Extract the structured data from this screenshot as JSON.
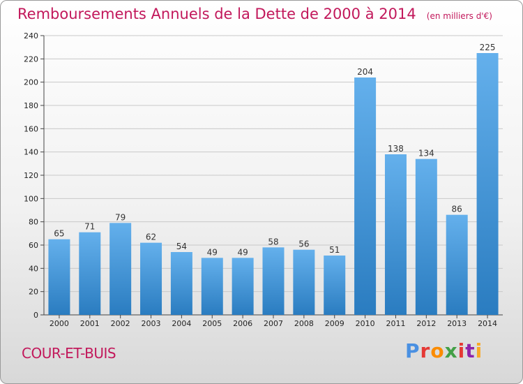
{
  "header": {
    "title": "Remboursements Annuels de la Dette de 2000 à 2014",
    "subtitle": "(en milliers d'€)"
  },
  "footer": {
    "commune": "COUR-ET-BUIS",
    "brand": "Proxiti",
    "brand_colors": [
      "#4a90e2",
      "#e53935",
      "#fb8c00",
      "#43a047",
      "#e53935",
      "#8e24aa",
      "#f9a825"
    ]
  },
  "colors": {
    "bar_light": "#64b0ec",
    "bar_dark": "#2a7cc0",
    "title": "#c2185b",
    "grid": "#c8c8c8"
  },
  "chart_data": {
    "type": "bar",
    "title": "Remboursements Annuels de la Dette de 2000 à 2014",
    "subtitle": "(en milliers d'€)",
    "xlabel": "",
    "ylabel": "",
    "categories": [
      "2000",
      "2001",
      "2002",
      "2003",
      "2004",
      "2005",
      "2006",
      "2007",
      "2008",
      "2009",
      "2010",
      "2011",
      "2012",
      "2013",
      "2014"
    ],
    "values": [
      65,
      71,
      79,
      62,
      54,
      49,
      49,
      58,
      56,
      51,
      204,
      138,
      134,
      86,
      225
    ],
    "ylim": [
      0,
      240
    ],
    "yticks": [
      0,
      20,
      40,
      60,
      80,
      100,
      120,
      140,
      160,
      180,
      200,
      220,
      240
    ],
    "grid": true,
    "legend": "none"
  }
}
